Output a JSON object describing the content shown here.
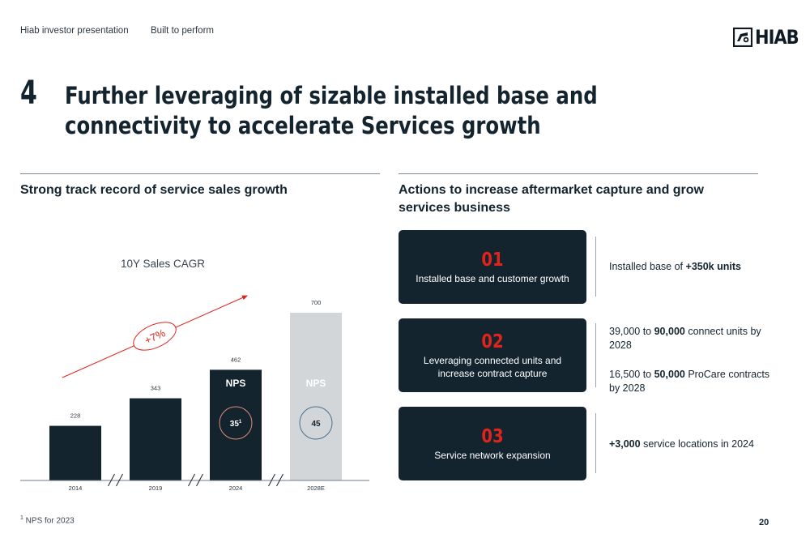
{
  "header": {
    "left_text": "Hiab investor presentation",
    "middle_text": "Built to perform",
    "logo_text": "HIAB"
  },
  "section_number": "4",
  "title": "Further leveraging of sizable installed base and connectivity to accelerate Services growth",
  "left_panel": {
    "heading": "Strong track record of service sales growth",
    "cagr_label": "10Y Sales CAGR",
    "cagr_value": "+7%"
  },
  "chart_data": {
    "type": "bar",
    "categories": [
      "2014",
      "2019",
      "2024",
      "2028E"
    ],
    "values": [
      228,
      343,
      462,
      700
    ],
    "ylim": [
      0,
      700
    ],
    "bar_colors": [
      "#13242f",
      "#13242f",
      "#13242f",
      "#d3d6d9"
    ],
    "nps": [
      {
        "category": "2024",
        "label": "NPS",
        "value": "35",
        "superscript": "1",
        "circle_color": "#e08a73"
      },
      {
        "category": "2028E",
        "label": "NPS",
        "value": "45",
        "circle_color": "#4a6f8c"
      }
    ],
    "axis_breaks": true,
    "trend_arrow_color": "#e0241b"
  },
  "right_panel": {
    "heading": "Actions to increase aftermarket capture and grow services business",
    "actions": [
      {
        "number": "01",
        "text": "Installed base and customer growth"
      },
      {
        "number": "02",
        "text": "Leveraging connected units and increase contract capture"
      },
      {
        "number": "03",
        "text": "Service network expansion"
      }
    ],
    "details": {
      "d1": {
        "pre": "Installed base of ",
        "bold": "+350k units"
      },
      "d2a": {
        "pre": "39,000 to ",
        "bold": "90,000",
        "post": " connect units by 2028"
      },
      "d2b": {
        "pre": "16,500 to ",
        "bold": "50,000",
        "post": " ProCare contracts by 2028"
      },
      "d3": {
        "bold": "+3,000",
        "post": " service locations in 2024"
      }
    }
  },
  "footnote": {
    "sup": "1",
    "text": " NPS for 2023"
  },
  "page_number": "20",
  "colors": {
    "navy": "#13242f",
    "accent_red": "#e0241b",
    "light_grey": "#d3d6d9"
  }
}
